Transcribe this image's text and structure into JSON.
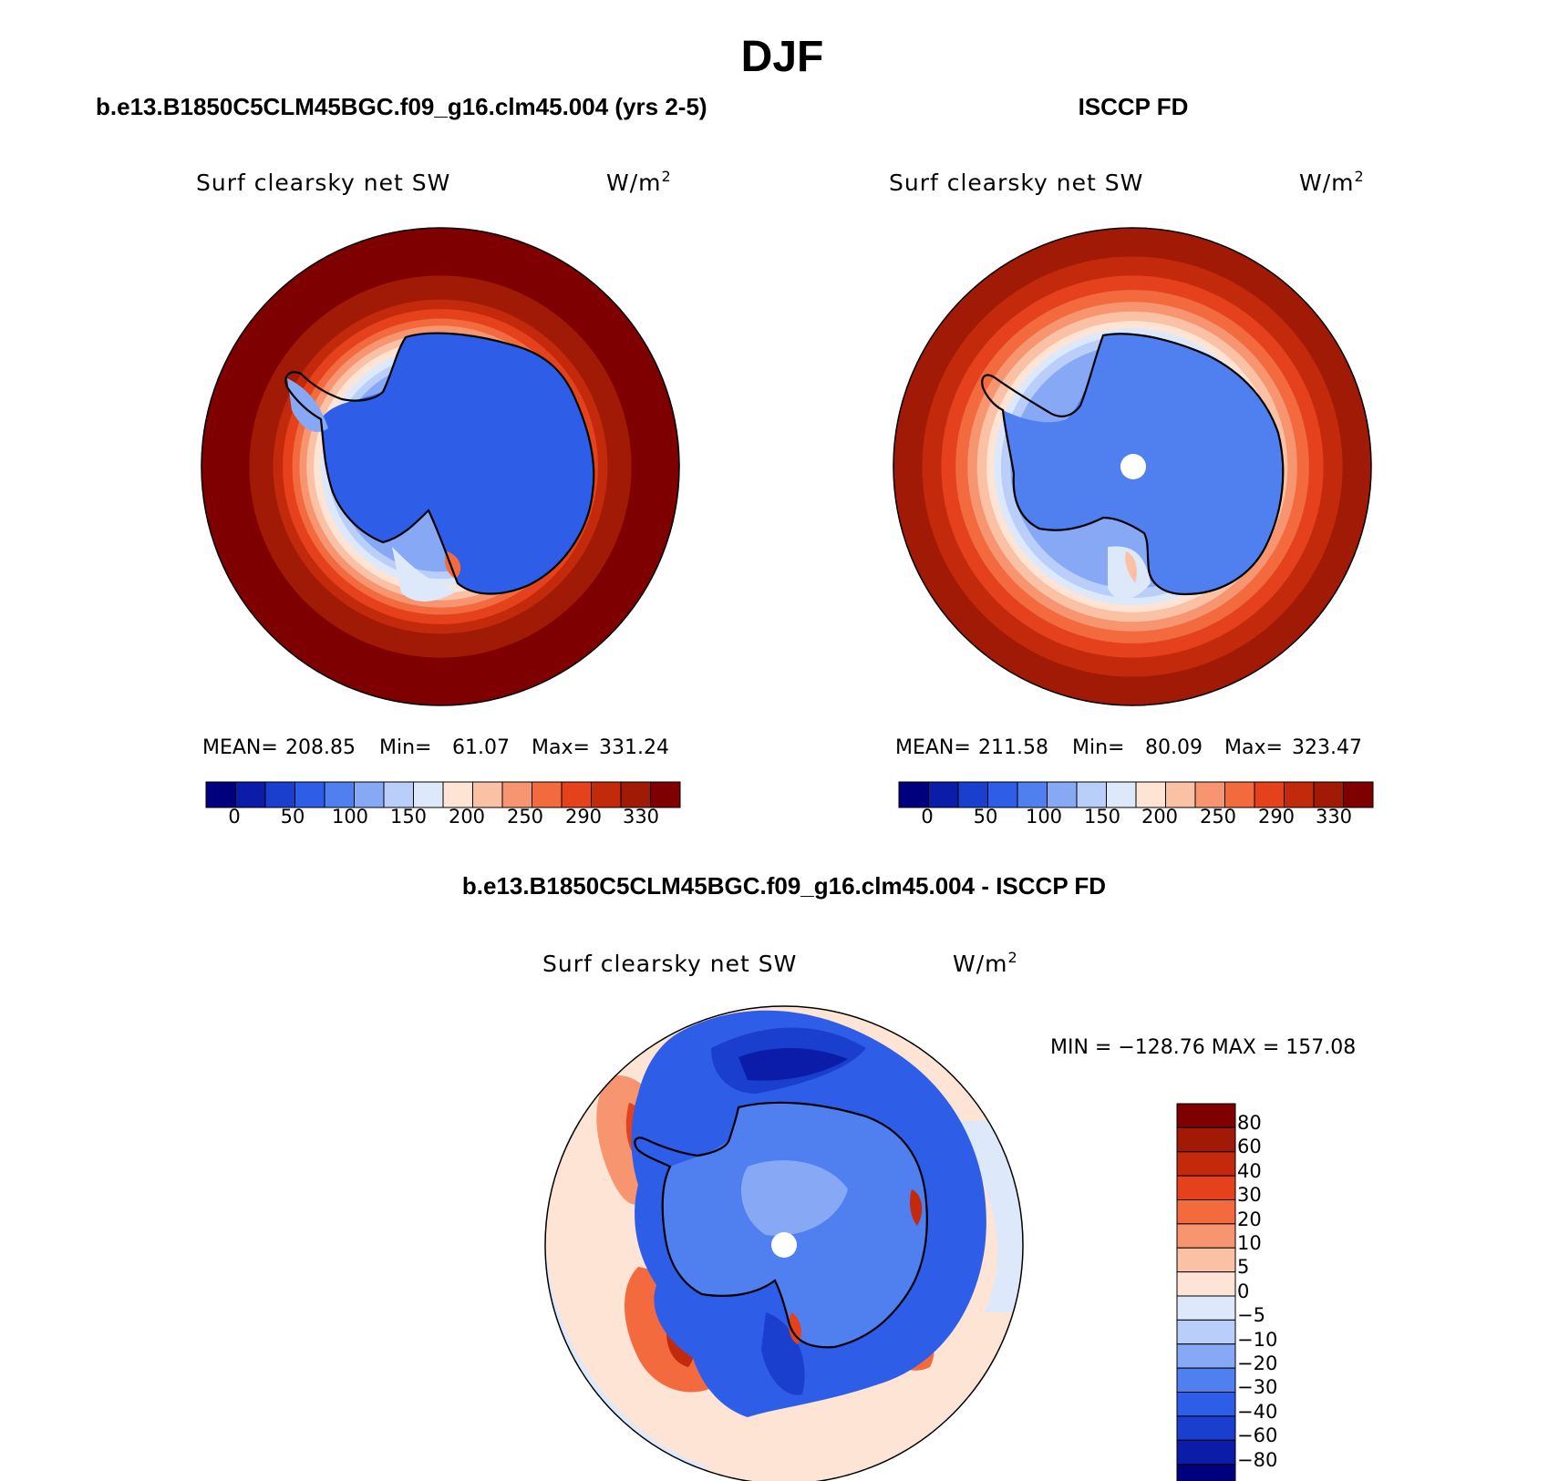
{
  "figure": {
    "title": "DJF"
  },
  "chart_data": [
    {
      "type": "heatmap",
      "projection": "south-polar-stereographic",
      "title": "b.e13.B1850C5CLM45BGC.f09_g16.clm45.004 (yrs 2-5)",
      "variable": "Surf clearsky net SW",
      "units_base": "W/m",
      "units_exp": "2",
      "stats": {
        "mean_label": "MEAN=",
        "mean": "208.85",
        "min_label": "Min=",
        "min": "61.07",
        "max_label": "Max=",
        "max": "331.24"
      },
      "levels": [
        0,
        25,
        50,
        75,
        100,
        125,
        150,
        175,
        200,
        225,
        250,
        270,
        290,
        310,
        330
      ],
      "tick_labels": [
        "0",
        "50",
        "100",
        "150",
        "200",
        "250",
        "290",
        "330"
      ],
      "colors": [
        "#00007f",
        "#0a1ca8",
        "#1a3fcf",
        "#2e5ee8",
        "#5080f0",
        "#86a8f5",
        "#b9cef8",
        "#dde9fb",
        "#fde4d4",
        "#fbc1a5",
        "#f79570",
        "#f26a3e",
        "#e4411c",
        "#c22a0b",
        "#a11a05",
        "#7e0000"
      ],
      "ring_classes": [
        15,
        15,
        14,
        14,
        13,
        12,
        11,
        10,
        9,
        8,
        7,
        6,
        5
      ],
      "ring_radii": [
        1.0,
        0.86,
        0.8,
        0.74,
        0.7,
        0.66,
        0.62,
        0.59,
        0.56,
        0.53,
        0.5,
        0.47,
        0.44
      ],
      "continent_class": 3
    },
    {
      "type": "heatmap",
      "projection": "south-polar-stereographic",
      "title": "ISCCP FD",
      "variable": "Surf clearsky net SW",
      "units_base": "W/m",
      "units_exp": "2",
      "stats": {
        "mean_label": "MEAN=",
        "mean": "211.58",
        "min_label": "Min=",
        "min": "80.09",
        "max_label": "Max=",
        "max": "323.47"
      },
      "levels": [
        0,
        25,
        50,
        75,
        100,
        125,
        150,
        175,
        200,
        225,
        250,
        270,
        290,
        310,
        330
      ],
      "tick_labels": [
        "0",
        "50",
        "100",
        "150",
        "200",
        "250",
        "290",
        "330"
      ],
      "colors": [
        "#00007f",
        "#0a1ca8",
        "#1a3fcf",
        "#2e5ee8",
        "#5080f0",
        "#86a8f5",
        "#b9cef8",
        "#dde9fb",
        "#fde4d4",
        "#fbc1a5",
        "#f79570",
        "#f26a3e",
        "#e4411c",
        "#c22a0b",
        "#a11a05",
        "#7e0000"
      ],
      "ring_classes": [
        14,
        13,
        12,
        11,
        10,
        9,
        8,
        7,
        6,
        5
      ],
      "ring_radii": [
        1.0,
        0.88,
        0.8,
        0.74,
        0.69,
        0.65,
        0.61,
        0.58,
        0.55,
        0.51
      ],
      "continent_class": 4
    },
    {
      "type": "heatmap",
      "projection": "south-polar-stereographic",
      "title": "b.e13.B1850C5CLM45BGC.f09_g16.clm45.004 - ISCCP FD",
      "variable": "Surf clearsky net SW",
      "units_base": "W/m",
      "units_exp": "2",
      "stats_text": "MIN = −128.76 MAX = 157.08",
      "levels": [
        -80,
        -60,
        -40,
        -30,
        -20,
        -10,
        -5,
        0,
        5,
        10,
        20,
        30,
        40,
        60,
        80
      ],
      "tick_labels": [
        "80",
        "60",
        "40",
        "30",
        "20",
        "10",
        "5",
        "0",
        "−5",
        "−10",
        "−20",
        "−30",
        "−40",
        "−60",
        "−80"
      ],
      "colors": [
        "#7e0000",
        "#a11a05",
        "#c22a0b",
        "#e4411c",
        "#f26a3e",
        "#f79570",
        "#fbc1a5",
        "#fde4d4",
        "#dde9fb",
        "#b9cef8",
        "#86a8f5",
        "#5080f0",
        "#2e5ee8",
        "#1a3fcf",
        "#0a1ca8",
        "#00007f"
      ]
    }
  ]
}
